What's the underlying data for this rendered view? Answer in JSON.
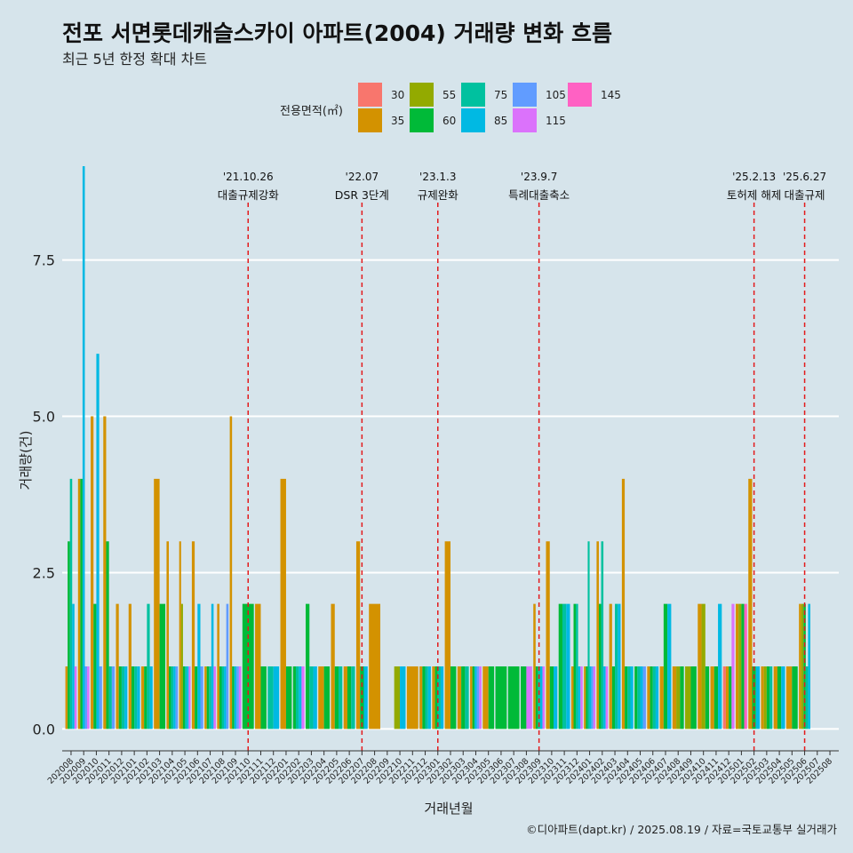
{
  "header": {
    "title": "전포 서면롯데캐슬스카이 아파트(2004) 거래량 변화 흐름",
    "subtitle": "최근 5년 한정 확대 차트"
  },
  "legend": {
    "title": "전용면적(㎡)",
    "items": [
      {
        "label": "30",
        "color": "#F8766D"
      },
      {
        "label": "35",
        "color": "#D39200"
      },
      {
        "label": "55",
        "color": "#93AA00"
      },
      {
        "label": "60",
        "color": "#00BA38"
      },
      {
        "label": "75",
        "color": "#00C19F"
      },
      {
        "label": "85",
        "color": "#00B9E3"
      },
      {
        "label": "105",
        "color": "#619CFF"
      },
      {
        "label": "115",
        "color": "#DB72FB"
      },
      {
        "label": "145",
        "color": "#FF61C3"
      }
    ]
  },
  "source": "©디아파트(dapt.kr) / 2025.08.19 / 자료=국토교통부 실거래가",
  "chart_data": {
    "type": "bar",
    "title": "전포 서면롯데캐슬스카이 아파트(2004) 거래량 변화 흐름",
    "xlabel": "거래년월",
    "ylabel": "거래량(건)",
    "ylim": [
      -0.35,
      9.1
    ],
    "yticks": [
      0.0,
      2.5,
      5.0,
      7.5
    ],
    "ytick_labels": [
      "0.0",
      "2.5",
      "5.0",
      "7.5"
    ],
    "categories": [
      "202008",
      "202009",
      "202010",
      "202011",
      "202012",
      "202101",
      "202102",
      "202103",
      "202104",
      "202105",
      "202106",
      "202107",
      "202108",
      "202109",
      "202110",
      "202111",
      "202112",
      "202201",
      "202202",
      "202203",
      "202204",
      "202205",
      "202206",
      "202207",
      "202208",
      "202209",
      "202210",
      "202211",
      "202212",
      "202301",
      "202302",
      "202303",
      "202304",
      "202305",
      "202306",
      "202307",
      "202308",
      "202309",
      "202310",
      "202311",
      "202312",
      "202401",
      "202402",
      "202403",
      "202404",
      "202405",
      "202406",
      "202407",
      "202408",
      "202409",
      "202410",
      "202411",
      "202412",
      "202501",
      "202502",
      "202503",
      "202504",
      "202505",
      "202506",
      "202507",
      "202508"
    ],
    "series": [
      {
        "name": "30",
        "values": [
          0,
          0,
          0,
          0,
          0,
          0,
          0,
          0,
          0,
          0,
          0,
          0,
          0,
          0,
          0,
          0,
          0,
          0,
          0,
          0,
          0,
          0,
          0,
          0,
          0,
          0,
          0,
          0,
          0,
          0,
          0,
          0,
          0,
          0,
          0,
          0,
          0,
          0,
          0,
          0,
          0,
          0,
          0,
          0,
          0,
          0,
          0,
          0,
          0,
          0,
          0,
          0,
          1,
          0,
          0,
          0,
          0,
          0,
          0,
          0,
          0
        ]
      },
      {
        "name": "35",
        "values": [
          1,
          4,
          5,
          5,
          2,
          2,
          1,
          4,
          3,
          3,
          3,
          1,
          2,
          5,
          0,
          2,
          0,
          4,
          0,
          0,
          1,
          2,
          1,
          3,
          2,
          0,
          0,
          1,
          1,
          1,
          3,
          1,
          1,
          1,
          0,
          0,
          0,
          2,
          3,
          0,
          1,
          1,
          3,
          2,
          4,
          0,
          1,
          1,
          1,
          0,
          2,
          1,
          1,
          2,
          4,
          1,
          1,
          1,
          2,
          0,
          0
        ]
      },
      {
        "name": "55",
        "values": [
          0,
          0,
          0,
          0,
          0,
          0,
          0,
          0,
          0,
          2,
          0,
          0,
          0,
          0,
          0,
          0,
          0,
          0,
          0,
          0,
          0,
          0,
          0,
          0,
          0,
          0,
          1,
          0,
          0,
          0,
          0,
          0,
          0,
          0,
          0,
          0,
          0,
          0,
          0,
          0,
          0,
          0,
          0,
          0,
          0,
          0,
          0,
          0,
          1,
          1,
          2,
          0,
          0,
          2,
          0,
          1,
          0,
          0,
          2,
          0,
          0
        ]
      },
      {
        "name": "60",
        "values": [
          3,
          4,
          2,
          3,
          1,
          1,
          1,
          2,
          1,
          1,
          1,
          1,
          1,
          1,
          2,
          1,
          0,
          1,
          1,
          2,
          1,
          1,
          1,
          1,
          0,
          0,
          0,
          0,
          1,
          1,
          1,
          1,
          1,
          1,
          1,
          1,
          1,
          1,
          1,
          2,
          2,
          1,
          2,
          1,
          1,
          1,
          1,
          2,
          1,
          1,
          1,
          1,
          1,
          2,
          1,
          1,
          1,
          1,
          2,
          0,
          0
        ]
      },
      {
        "name": "75",
        "values": [
          4,
          0,
          0,
          1,
          1,
          1,
          2,
          0,
          1,
          1,
          0,
          1,
          1,
          0,
          0,
          0,
          1,
          0,
          1,
          1,
          0,
          1,
          1,
          0,
          0,
          0,
          0,
          0,
          1,
          1,
          0,
          1,
          0,
          0,
          0,
          0,
          0,
          1,
          0,
          2,
          2,
          3,
          3,
          2,
          1,
          1,
          1,
          0,
          0,
          0,
          0,
          0,
          0,
          0,
          0,
          1,
          0,
          0,
          1,
          0,
          0
        ]
      },
      {
        "name": "85",
        "values": [
          2,
          9,
          6,
          0,
          1,
          1,
          1,
          0,
          1,
          1,
          2,
          2,
          1,
          1,
          0,
          0,
          1,
          0,
          1,
          1,
          0,
          0,
          0,
          1,
          0,
          0,
          1,
          0,
          1,
          1,
          0,
          0,
          1,
          0,
          0,
          0,
          0,
          1,
          1,
          2,
          1,
          1,
          1,
          2,
          1,
          1,
          1,
          2,
          0,
          0,
          0,
          2,
          0,
          0,
          1,
          0,
          1,
          0,
          2,
          0,
          0
        ]
      },
      {
        "name": "105",
        "values": [
          0,
          1,
          1,
          1,
          0,
          0,
          0,
          0,
          1,
          0,
          1,
          0,
          2,
          1,
          0,
          0,
          0,
          0,
          0,
          0,
          0,
          0,
          0,
          0,
          0,
          0,
          0,
          0,
          0,
          0,
          0,
          0,
          1,
          0,
          0,
          0,
          0,
          0,
          0,
          0,
          0,
          1,
          0,
          0,
          0,
          1,
          0,
          0,
          0,
          0,
          0,
          0,
          0,
          0,
          0,
          0,
          0,
          0,
          0,
          0,
          0
        ]
      },
      {
        "name": "115",
        "values": [
          1,
          1,
          0,
          0,
          0,
          0,
          0,
          0,
          0,
          1,
          0,
          1,
          0,
          1,
          0,
          0,
          0,
          0,
          1,
          0,
          0,
          0,
          0,
          0,
          0,
          0,
          0,
          0,
          0,
          0,
          0,
          0,
          1,
          0,
          0,
          0,
          1,
          1,
          0,
          0,
          1,
          1,
          1,
          0,
          0,
          0,
          0,
          0,
          0,
          0,
          0,
          0,
          2,
          0,
          0,
          0,
          0,
          0,
          0,
          0,
          0
        ]
      },
      {
        "name": "145",
        "values": [
          0,
          0,
          0,
          0,
          0,
          0,
          0,
          0,
          0,
          0,
          0,
          0,
          0,
          0,
          0,
          0,
          0,
          0,
          0,
          0,
          0,
          0,
          0,
          0,
          0,
          0,
          0,
          0,
          0,
          0,
          0,
          0,
          0,
          0,
          0,
          0,
          0,
          0,
          0,
          0,
          0,
          0,
          0,
          0,
          0,
          0,
          0,
          0,
          0,
          0,
          0,
          0,
          0,
          2,
          0,
          0,
          0,
          0,
          0,
          0,
          0
        ]
      }
    ],
    "events": [
      {
        "date": "'21.10.26",
        "label": "대출규제강화",
        "at": "202110"
      },
      {
        "date": "'22.07",
        "label": "DSR 3단계",
        "at": "202207"
      },
      {
        "date": "'23.1.3",
        "label": "규제완화",
        "at": "202301"
      },
      {
        "date": "'23.9.7",
        "label": "특례대출축소",
        "at": "202309"
      },
      {
        "date": "'25.2.13",
        "label": "토허제 해제",
        "at": "202502"
      },
      {
        "date": "'25.6.27",
        "label": "대출규제",
        "at": "202506"
      }
    ]
  }
}
